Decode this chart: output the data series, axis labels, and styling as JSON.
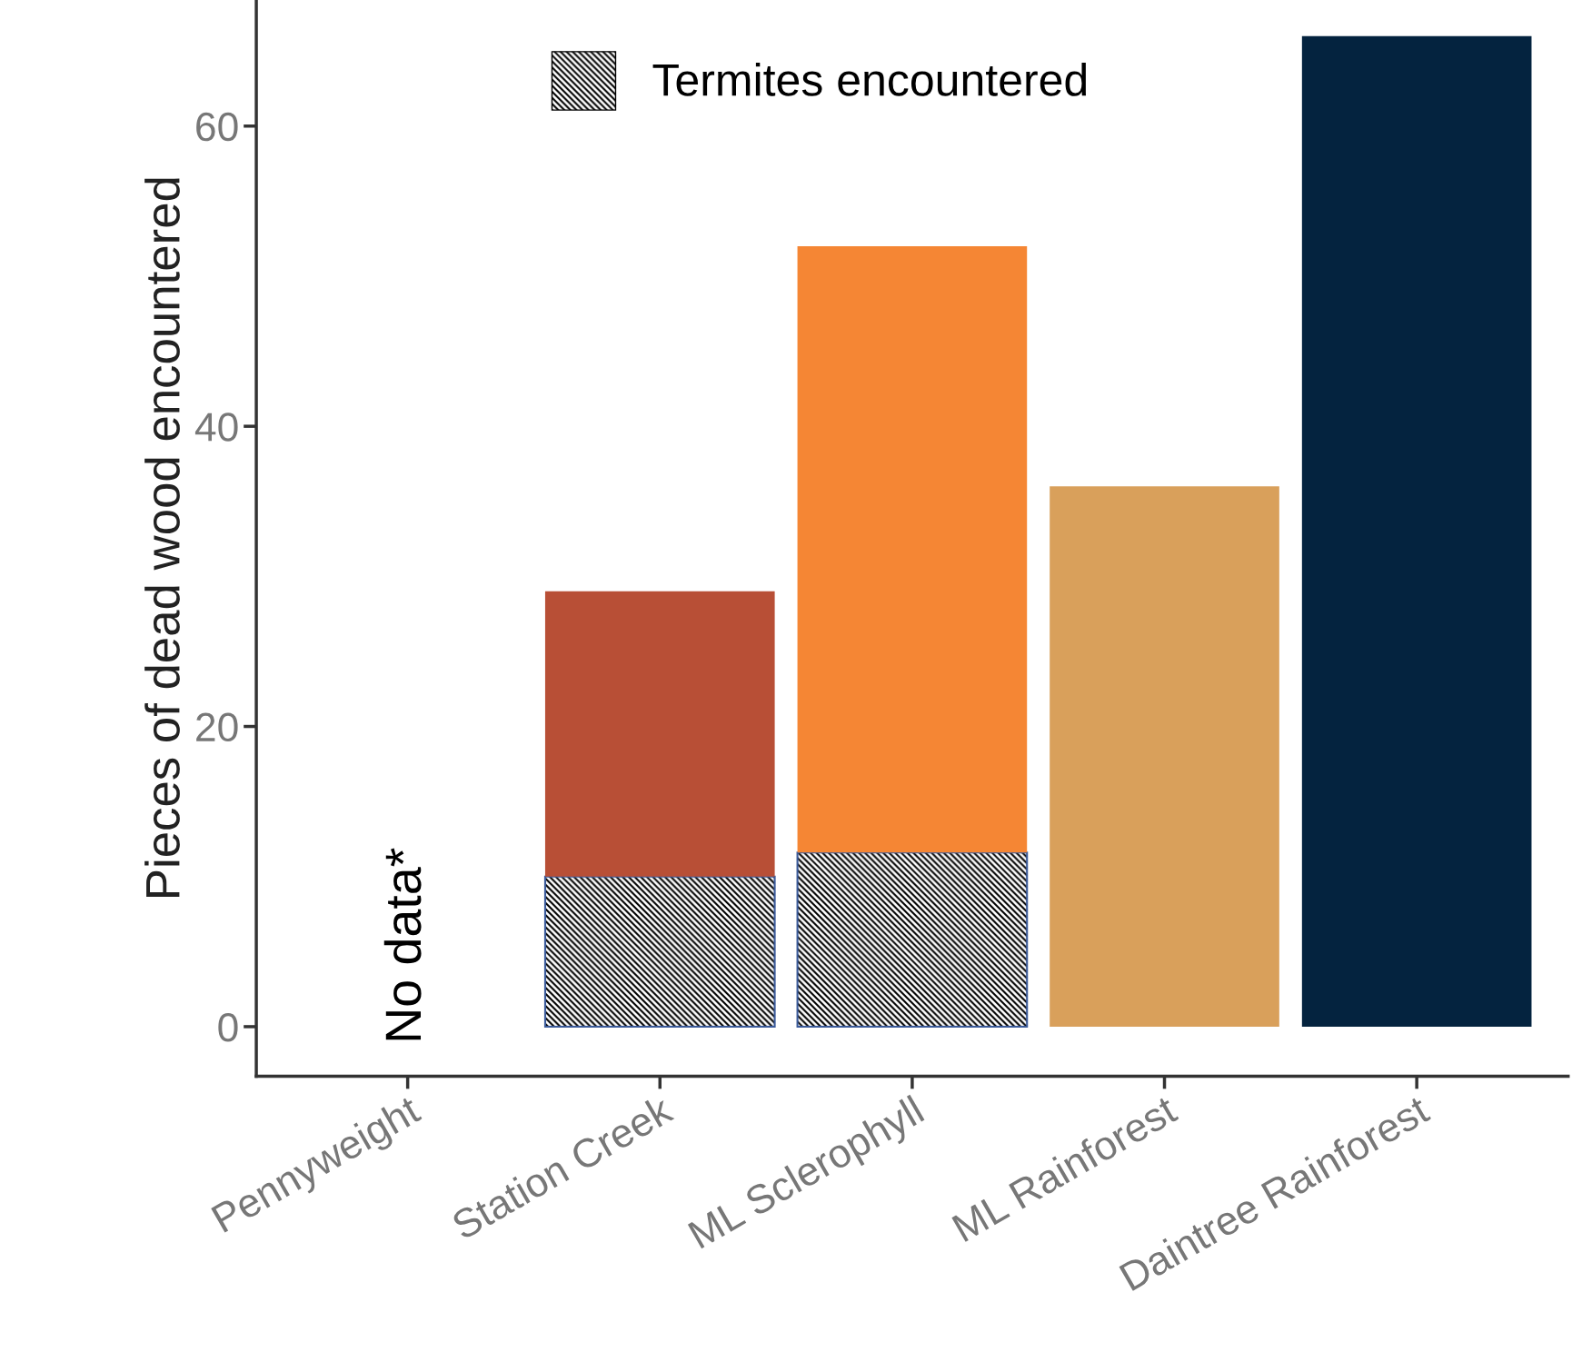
{
  "chart_data": {
    "type": "bar",
    "stacked": true,
    "ylabel": "Pieces of dead wood encountered",
    "categories": [
      "Pennyweight",
      "Station Creek",
      "ML Sclerophyll",
      "ML Rainforest",
      "Daintree Rainforest"
    ],
    "series": [
      {
        "name": "Termites encountered",
        "color": "#000000",
        "values": [
          null,
          10,
          11.6,
          0,
          0
        ]
      },
      {
        "colors": [
          "#b84f36",
          "#b84f36",
          "#f58634",
          "#d9a05b",
          "#04233f"
        ],
        "values": [
          null,
          19,
          40.4,
          36,
          66
        ]
      }
    ],
    "ylim": [
      -3.3,
      68.4
    ],
    "yticks": [
      0,
      20,
      40,
      60
    ],
    "grid": false,
    "legend": "top",
    "annotations": [
      "No data*"
    ]
  }
}
